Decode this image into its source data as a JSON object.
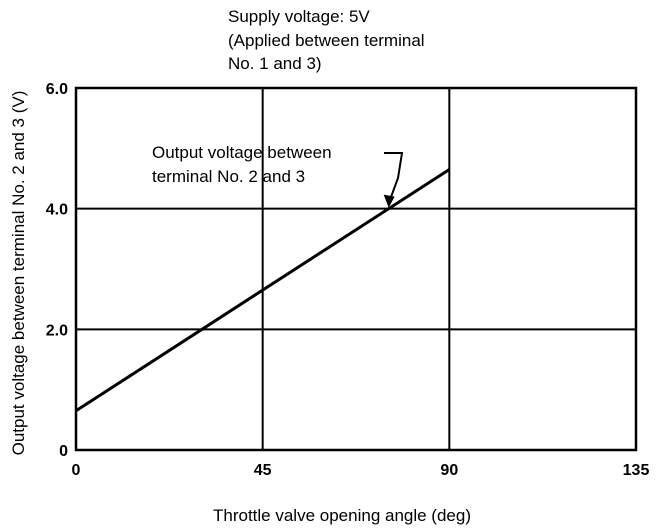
{
  "chart_data": {
    "type": "line",
    "supply_note": [
      "Supply voltage: 5V",
      "(Applied between terminal",
      "No. 1 and 3)"
    ],
    "xlabel": "Throttle valve opening angle (deg)",
    "ylabel": "Output voltage between terminal No. 2 and 3 (V)",
    "xlim": [
      0,
      135
    ],
    "ylim": [
      0,
      6.0
    ],
    "x_ticks": [
      {
        "value": 0,
        "label": "0"
      },
      {
        "value": 45,
        "label": "45"
      },
      {
        "value": 90,
        "label": "90"
      },
      {
        "value": 135,
        "label": "135"
      }
    ],
    "y_ticks": [
      {
        "value": 0,
        "label": "0"
      },
      {
        "value": 2.0,
        "label": "2.0"
      },
      {
        "value": 4.0,
        "label": "4.0"
      },
      {
        "value": 6.0,
        "label": "6.0"
      }
    ],
    "grid": true,
    "series": [
      {
        "label_lines": [
          "Output voltage between",
          "terminal No. 2 and 3"
        ],
        "x": [
          0,
          90
        ],
        "y": [
          0.65,
          4.65
        ]
      }
    ]
  }
}
